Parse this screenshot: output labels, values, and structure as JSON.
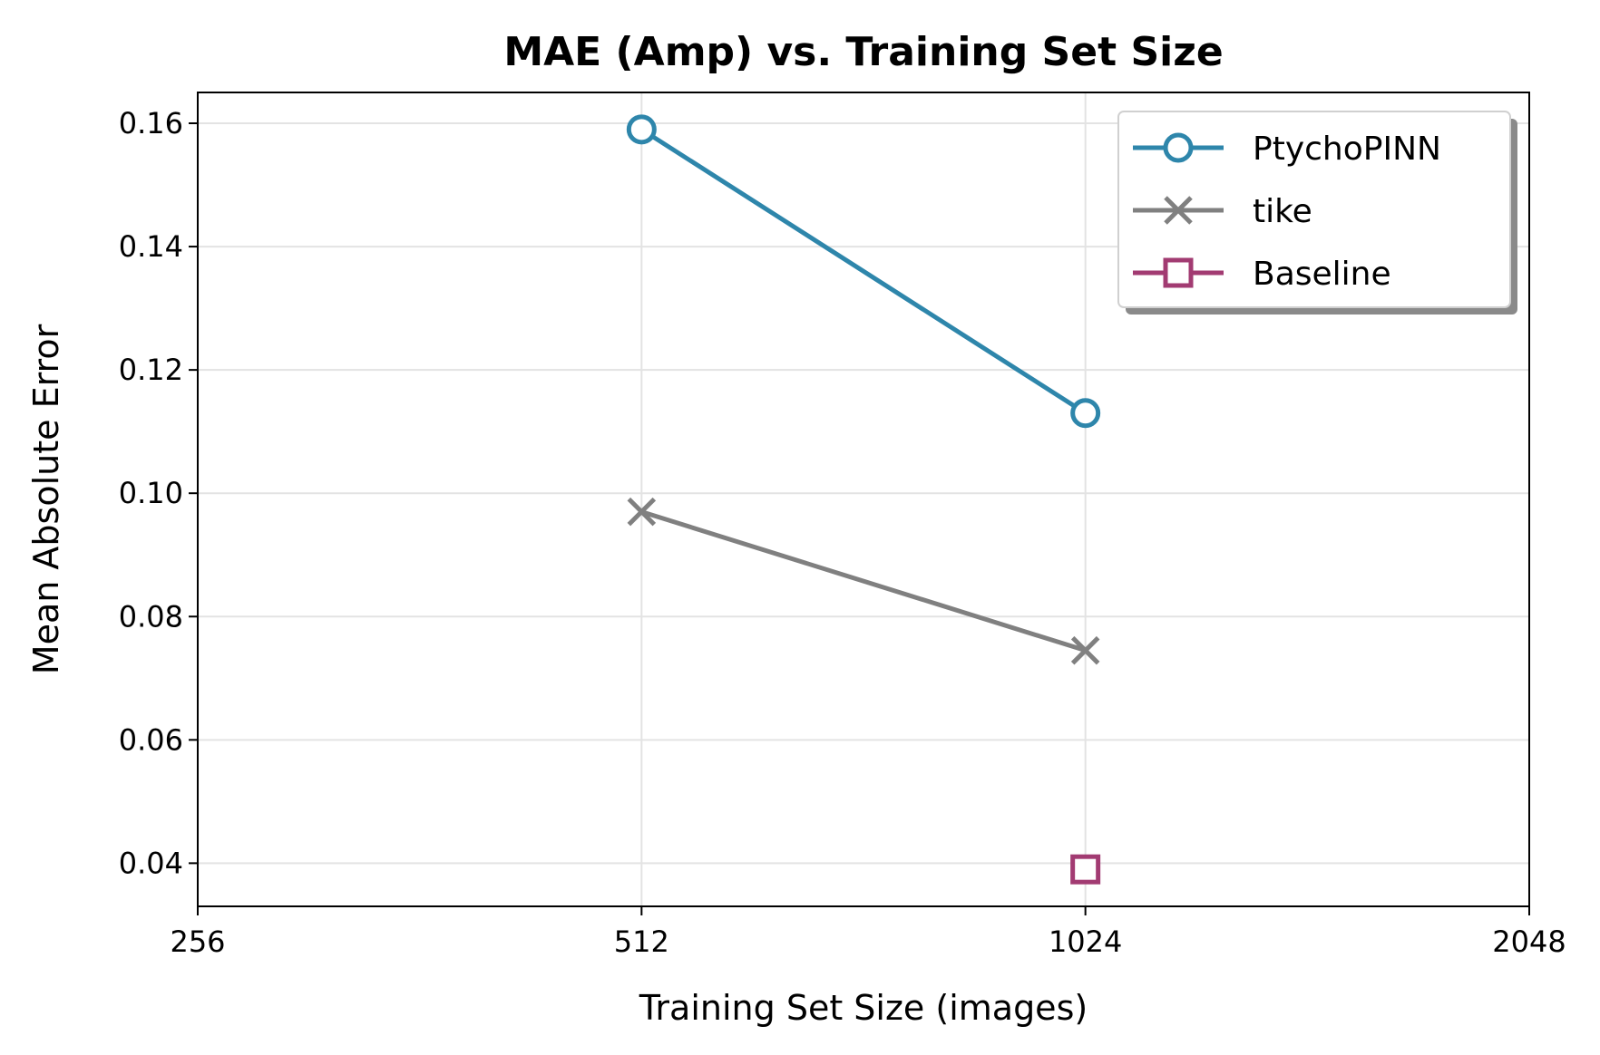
{
  "chart_data": {
    "type": "line",
    "title": "MAE (Amp) vs. Training Set Size",
    "xlabel": "Training Set Size (images)",
    "ylabel": "Mean Absolute Error",
    "x_scale": "log2",
    "xlim": [
      256,
      2048
    ],
    "ylim": [
      0.033,
      0.165
    ],
    "x_ticks": [
      256,
      512,
      1024,
      2048
    ],
    "x_tick_labels": [
      "256",
      "512",
      "1024",
      "2048"
    ],
    "y_ticks": [
      0.04,
      0.06,
      0.08,
      0.1,
      0.12,
      0.14,
      0.16
    ],
    "y_tick_labels": [
      "0.04",
      "0.06",
      "0.08",
      "0.10",
      "0.12",
      "0.14",
      "0.16"
    ],
    "grid": true,
    "legend_position": "top-right",
    "series": [
      {
        "name": "PtychoPINN",
        "marker": "circle",
        "color": "#2e86ab",
        "x": [
          512,
          1024
        ],
        "y": [
          0.159,
          0.113
        ]
      },
      {
        "name": "tike",
        "marker": "x",
        "color": "#808080",
        "x": [
          512,
          1024
        ],
        "y": [
          0.097,
          0.0745
        ]
      },
      {
        "name": "Baseline",
        "marker": "square",
        "color": "#a23b72",
        "x": [
          1024
        ],
        "y": [
          0.039
        ]
      }
    ]
  }
}
